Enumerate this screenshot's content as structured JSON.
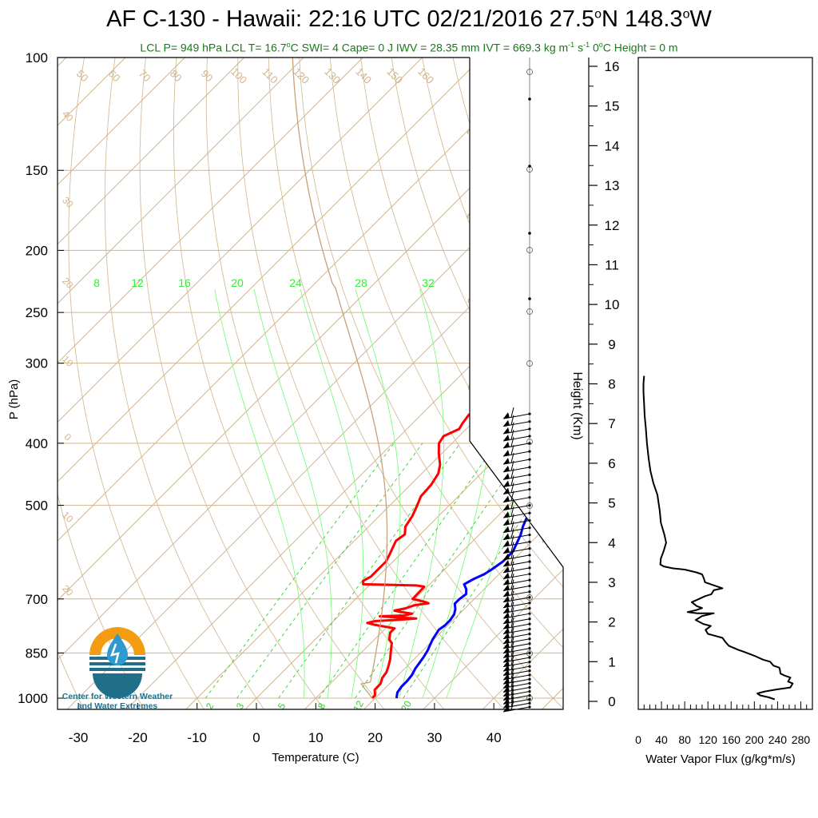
{
  "title_parts": {
    "main": "AF C-130 - Hawaii: 22:16 UTC 02/21/2016  27.5",
    "lat_unit": "N 148.3",
    "lon_unit": "W"
  },
  "subtitle_parts": {
    "a": "LCL P= 949 hPa  LCL T= 16.7",
    "b": "C  SWI= 4  Cape= 0 J  IWV = 28.35 mm  IVT = 669.3 kg m",
    "c": "-1",
    "d": " s",
    "e": "-1",
    "f": "  0",
    "g": "C Height = 0 m"
  },
  "logo": {
    "line1": "Center for Western Weather",
    "line2": "and Water Extremes"
  },
  "chart_data": [
    {
      "type": "line",
      "name": "skew-t",
      "xlabel": "Temperature (C)",
      "ylabel": "P (hPa)",
      "xticks": [
        -30,
        -20,
        -10,
        0,
        10,
        20,
        30,
        40
      ],
      "yticks": [
        100,
        150,
        200,
        250,
        300,
        400,
        500,
        700,
        850,
        1000
      ],
      "xlim": [
        -34,
        42
      ],
      "ylim": [
        1050,
        100
      ],
      "dry_adiabat_labels": [
        "50",
        "60",
        "70",
        "80",
        "90",
        "100",
        "110",
        "120",
        "130",
        "140",
        "150",
        "160"
      ],
      "isotherm_labels_left": [
        "40",
        "30",
        "20",
        "10",
        "0",
        "10",
        "20"
      ],
      "isotherm_labels_right": [
        "30",
        "20",
        "10",
        "0",
        "10",
        "20",
        "30"
      ],
      "mixing_ratio_labels_top": [
        "8",
        "12",
        "16",
        "20",
        "24",
        "28",
        "32"
      ],
      "mixing_ratio_labels_bottom": [
        "2",
        "3",
        "5",
        "8",
        "12",
        "20"
      ],
      "series": [
        {
          "label": "temperature",
          "color": "#ff0000",
          "points": [
            [
              -12,
              360
            ],
            [
              -11.6,
              372
            ],
            [
              -11.2,
              380
            ],
            [
              -12.6,
              390
            ],
            [
              -12.2,
              400
            ],
            [
              -10.5,
              415
            ],
            [
              -8.4,
              432
            ],
            [
              -7.2,
              446
            ],
            [
              -6.5,
              465
            ],
            [
              -6.3,
              484
            ],
            [
              -5.4,
              500
            ],
            [
              -4.4,
              520
            ],
            [
              -3.8,
              540
            ],
            [
              -2.6,
              555
            ],
            [
              -3,
              568
            ],
            [
              -2.5,
              580
            ],
            [
              -1.8,
              596
            ],
            [
              -1.2,
              612
            ],
            [
              -1.2,
              632
            ],
            [
              -1.2,
              646
            ],
            [
              -1.8,
              656
            ],
            [
              -1.2,
              664
            ],
            [
              8,
              667
            ],
            [
              9.5,
              670
            ],
            [
              9.6,
              700
            ],
            [
              11,
              704
            ],
            [
              12,
              707
            ],
            [
              13,
              711
            ],
            [
              11,
              716
            ],
            [
              10,
              724
            ],
            [
              8.5,
              730
            ],
            [
              10,
              734
            ],
            [
              12,
              738
            ],
            [
              11,
              743
            ],
            [
              7,
              745
            ],
            [
              10,
              748
            ],
            [
              13.5,
              751
            ],
            [
              11,
              754
            ],
            [
              7,
              758
            ],
            [
              6,
              763
            ],
            [
              7.5,
              768
            ],
            [
              9.5,
              773
            ],
            [
              11.5,
              778
            ],
            [
              11.5,
              790
            ],
            [
              12,
              800
            ],
            [
              12.5,
              810
            ],
            [
              13.5,
              820
            ],
            [
              14.5,
              840
            ],
            [
              15,
              850
            ],
            [
              16,
              870
            ],
            [
              16.8,
              890
            ],
            [
              17.5,
              910
            ],
            [
              17.8,
              930
            ],
            [
              18.5,
              950
            ],
            [
              18.5,
              970
            ],
            [
              19.5,
              990
            ],
            [
              19.5,
              1000
            ]
          ]
        },
        {
          "label": "dewpoint",
          "color": "#0000ff",
          "points": [
            [
              6,
              360
            ],
            [
              6.8,
              375
            ],
            [
              7,
              390
            ],
            [
              7.3,
              400
            ],
            [
              8.8,
              420
            ],
            [
              10.3,
              440
            ],
            [
              11.5,
              460
            ],
            [
              12.5,
              480
            ],
            [
              13.5,
              500
            ],
            [
              15,
              520
            ],
            [
              16,
              540
            ],
            [
              17,
              556
            ],
            [
              17.8,
              574
            ],
            [
              18.5,
              590
            ],
            [
              18.5,
              612
            ],
            [
              18,
              628
            ],
            [
              17.5,
              640
            ],
            [
              16.5,
              652
            ],
            [
              15.8,
              664
            ],
            [
              17,
              676
            ],
            [
              17.8,
              688
            ],
            [
              17.5,
              700
            ],
            [
              17.5,
              712
            ],
            [
              18.5,
              726
            ],
            [
              19.2,
              740
            ],
            [
              19.5,
              756
            ],
            [
              19.5,
              770
            ],
            [
              19.2,
              782
            ],
            [
              19.5,
              796
            ],
            [
              19.8,
              810
            ],
            [
              20.3,
              826
            ],
            [
              20.8,
              842
            ],
            [
              21.2,
              860
            ],
            [
              21.5,
              880
            ],
            [
              21.8,
              900
            ],
            [
              22.3,
              920
            ],
            [
              22.5,
              940
            ],
            [
              22.5,
              960
            ],
            [
              22.8,
              980
            ],
            [
              23.2,
              990
            ],
            [
              23.6,
              1000
            ]
          ]
        }
      ],
      "wind_barbs_pressure_hPa": [
        360,
        370,
        380,
        390,
        400,
        412,
        424,
        436,
        448,
        460,
        472,
        486,
        500,
        514,
        528,
        542,
        556,
        570,
        584,
        598,
        612,
        626,
        640,
        654,
        668,
        682,
        696,
        710,
        724,
        738,
        752,
        766,
        780,
        794,
        808,
        822,
        836,
        850,
        864,
        878,
        892,
        906,
        920,
        934,
        948,
        962,
        976,
        990,
        1004,
        1018,
        1032
      ]
    },
    {
      "type": "scale",
      "name": "height-axis",
      "ylabel": "Height (Km)",
      "ticks": [
        0,
        1,
        2,
        3,
        4,
        5,
        6,
        7,
        8,
        9,
        10,
        11,
        12,
        13,
        14,
        15,
        16
      ],
      "ylim": [
        -0.2,
        16.3
      ]
    },
    {
      "type": "line",
      "name": "water-vapor-flux",
      "xlabel": "Water Vapor Flux (g/kg*m/s)",
      "xticks": [
        0,
        40,
        80,
        120,
        160,
        200,
        240,
        280
      ],
      "xlim": [
        0,
        300
      ],
      "ylim": [
        -0.2,
        16.3
      ],
      "series": [
        {
          "label": "flux",
          "color": "#000000",
          "points": [
            [
              10,
              8.2
            ],
            [
              9,
              8
            ],
            [
              9,
              7.8
            ],
            [
              10,
              7.5
            ],
            [
              11,
              7.2
            ],
            [
              13,
              6.9
            ],
            [
              15,
              6.5
            ],
            [
              18,
              6.1
            ],
            [
              21,
              5.8
            ],
            [
              26,
              5.5
            ],
            [
              33,
              5.2
            ],
            [
              37,
              4.8
            ],
            [
              39,
              4.5
            ],
            [
              45,
              4.2
            ],
            [
              48,
              4
            ],
            [
              44,
              3.8
            ],
            [
              39,
              3.6
            ],
            [
              38,
              3.45
            ],
            [
              44,
              3.4
            ],
            [
              60,
              3.35
            ],
            [
              80,
              3.32
            ],
            [
              100,
              3.25
            ],
            [
              110,
              3.2
            ],
            [
              113,
              3.1
            ],
            [
              115,
              3
            ],
            [
              125,
              2.95
            ],
            [
              145,
              2.85
            ],
            [
              130,
              2.8
            ],
            [
              126,
              2.7
            ],
            [
              115,
              2.65
            ],
            [
              100,
              2.55
            ],
            [
              92,
              2.5
            ],
            [
              101,
              2.4
            ],
            [
              110,
              2.35
            ],
            [
              100,
              2.3
            ],
            [
              85,
              2.25
            ],
            [
              102,
              2.22
            ],
            [
              130,
              2.22
            ],
            [
              110,
              2.15
            ],
            [
              99,
              2.05
            ],
            [
              112,
              1.95
            ],
            [
              125,
              1.9
            ],
            [
              116,
              1.8
            ],
            [
              120,
              1.7
            ],
            [
              145,
              1.6
            ],
            [
              150,
              1.5
            ],
            [
              156,
              1.4
            ],
            [
              172,
              1.3
            ],
            [
              182,
              1.25
            ],
            [
              200,
              1.15
            ],
            [
              215,
              1.05
            ],
            [
              227,
              1
            ],
            [
              233,
              0.9
            ],
            [
              243,
              0.85
            ],
            [
              244,
              0.8
            ],
            [
              245,
              0.7
            ],
            [
              252,
              0.65
            ],
            [
              262,
              0.6
            ],
            [
              258,
              0.5
            ],
            [
              266,
              0.45
            ],
            [
              262,
              0.35
            ],
            [
              238,
              0.3
            ],
            [
              218,
              0.25
            ],
            [
              205,
              0.2
            ],
            [
              210,
              0.15
            ],
            [
              225,
              0.1
            ],
            [
              235,
              0.05
            ]
          ]
        }
      ]
    }
  ]
}
